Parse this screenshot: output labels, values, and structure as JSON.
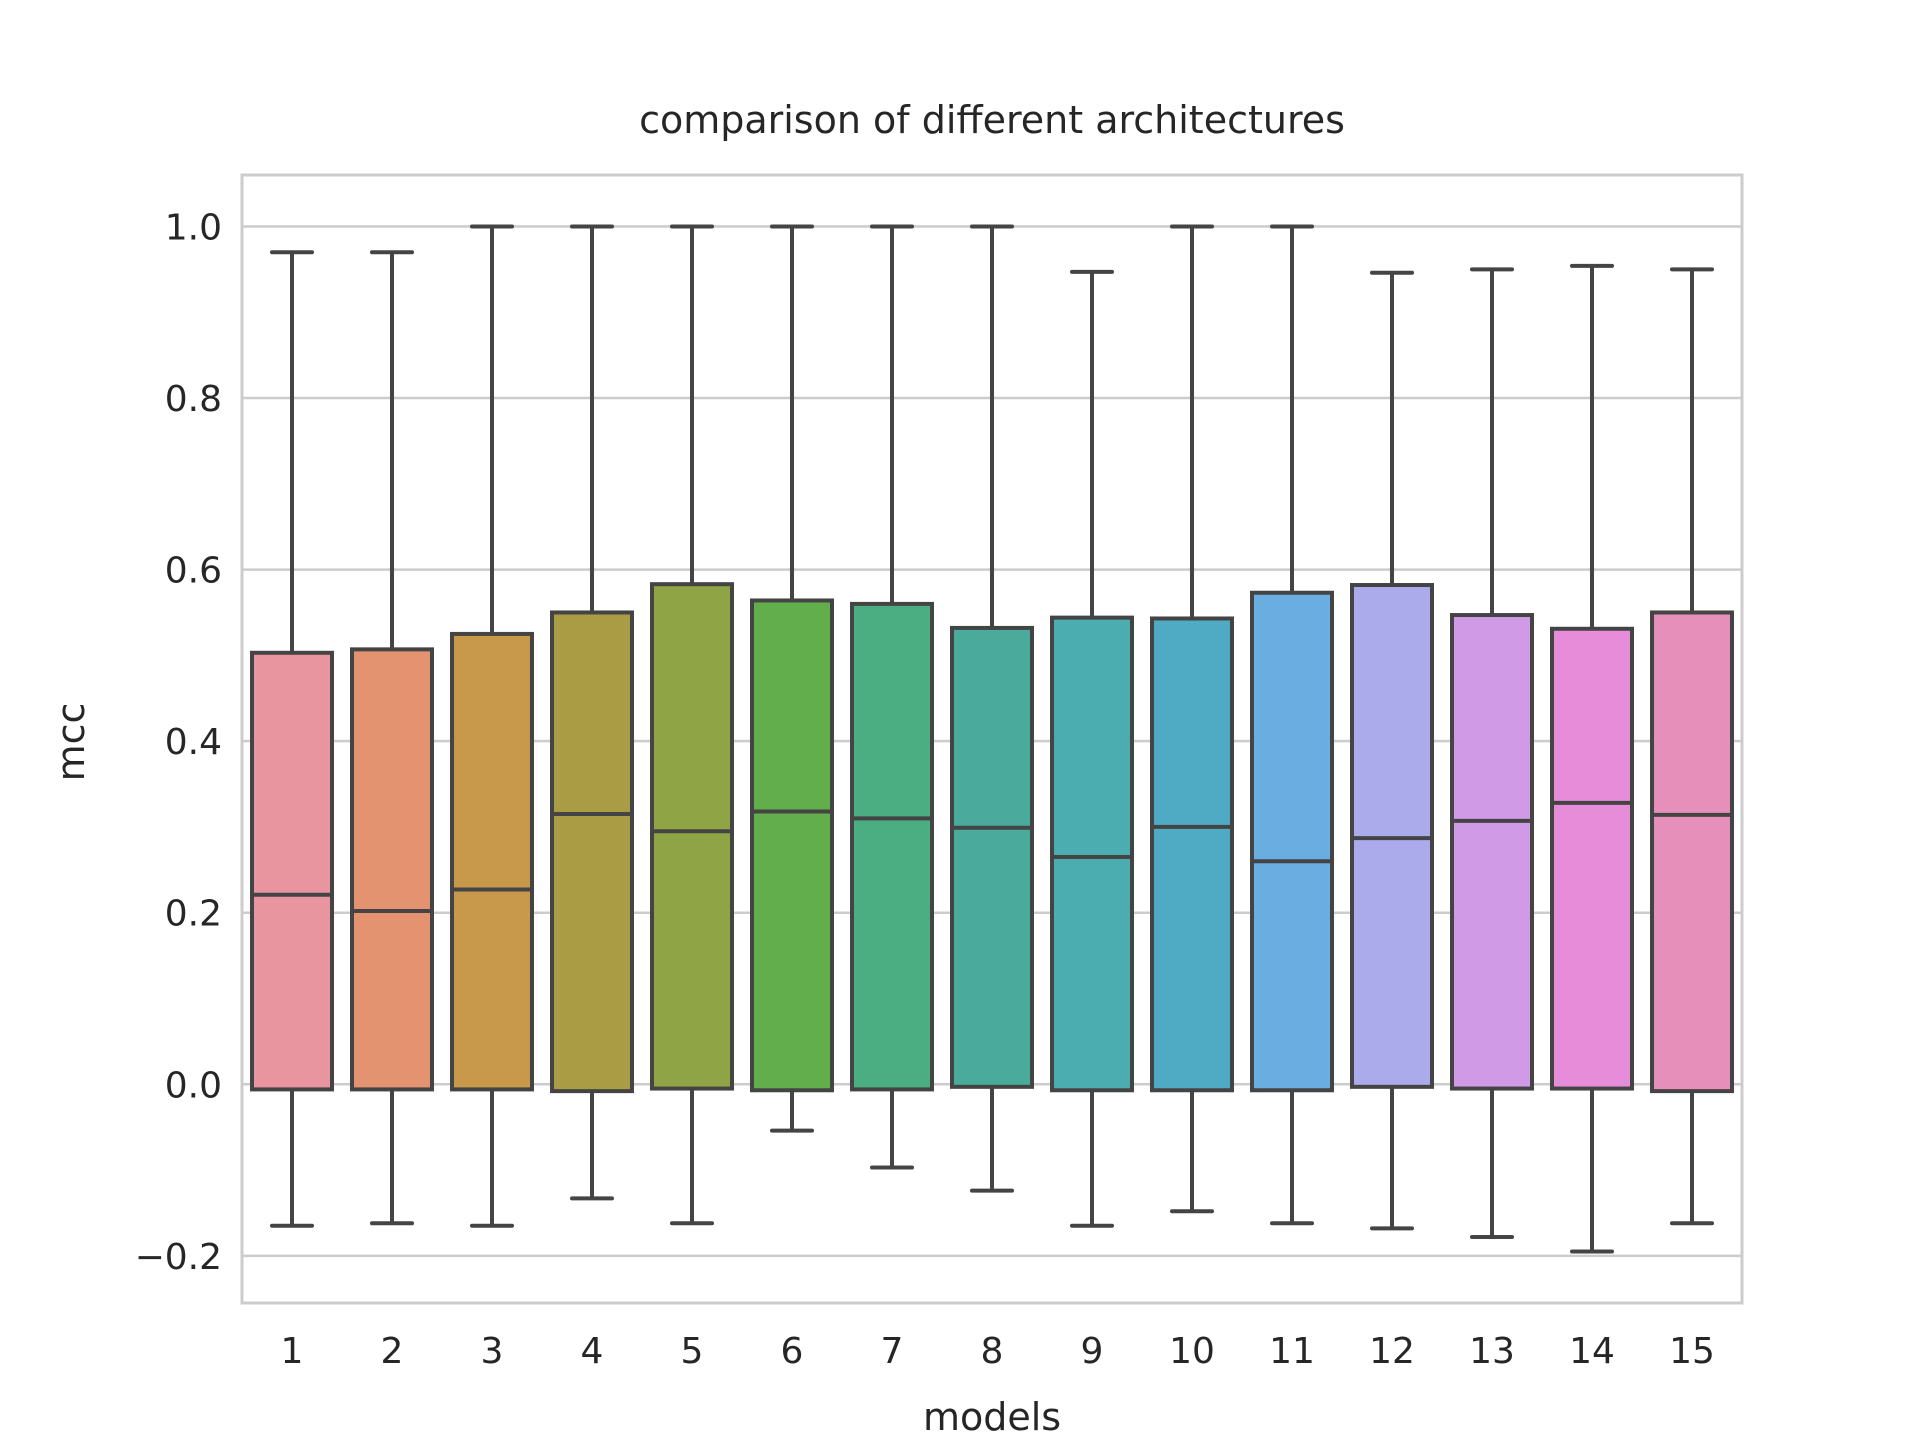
{
  "chart_data": {
    "type": "box",
    "title": "comparison of different architectures",
    "xlabel": "models",
    "ylabel": "mcc",
    "categories": [
      "1",
      "2",
      "3",
      "4",
      "5",
      "6",
      "7",
      "8",
      "9",
      "10",
      "11",
      "12",
      "13",
      "14",
      "15"
    ],
    "ylim": [
      -0.255,
      1.06
    ],
    "yticks": [
      -0.2,
      0.0,
      0.2,
      0.4,
      0.6,
      0.8,
      1.0
    ],
    "ytick_labels": [
      "−0.2",
      "0.0",
      "0.2",
      "0.4",
      "0.6",
      "0.8",
      "1.0"
    ],
    "grid": true,
    "boxes": [
      {
        "category": "1",
        "whisker_low": -0.165,
        "q1": -0.006,
        "median": 0.221,
        "q3": 0.503,
        "whisker_high": 0.97,
        "color": "#e8959f"
      },
      {
        "category": "2",
        "whisker_low": -0.162,
        "q1": -0.006,
        "median": 0.202,
        "q3": 0.507,
        "whisker_high": 0.97,
        "color": "#e39370"
      },
      {
        "category": "3",
        "whisker_low": -0.165,
        "q1": -0.006,
        "median": 0.227,
        "q3": 0.525,
        "whisker_high": 1.0,
        "color": "#c8994b"
      },
      {
        "category": "4",
        "whisker_low": -0.133,
        "q1": -0.008,
        "median": 0.315,
        "q3": 0.55,
        "whisker_high": 1.0,
        "color": "#a99c45"
      },
      {
        "category": "5",
        "whisker_low": -0.162,
        "q1": -0.005,
        "median": 0.295,
        "q3": 0.583,
        "whisker_high": 1.0,
        "color": "#8fa445"
      },
      {
        "category": "6",
        "whisker_low": -0.054,
        "q1": -0.007,
        "median": 0.318,
        "q3": 0.564,
        "whisker_high": 1.0,
        "color": "#62ae4c"
      },
      {
        "category": "7",
        "whisker_low": -0.097,
        "q1": -0.006,
        "median": 0.31,
        "q3": 0.56,
        "whisker_high": 1.0,
        "color": "#4bae83"
      },
      {
        "category": "8",
        "whisker_low": -0.124,
        "q1": -0.003,
        "median": 0.299,
        "q3": 0.532,
        "whisker_high": 1.0,
        "color": "#4aab9c"
      },
      {
        "category": "9",
        "whisker_low": -0.165,
        "q1": -0.007,
        "median": 0.265,
        "q3": 0.544,
        "whisker_high": 0.947,
        "color": "#4badb0"
      },
      {
        "category": "10",
        "whisker_low": -0.148,
        "q1": -0.007,
        "median": 0.3,
        "q3": 0.543,
        "whisker_high": 1.0,
        "color": "#4fabc4"
      },
      {
        "category": "11",
        "whisker_low": -0.162,
        "q1": -0.007,
        "median": 0.26,
        "q3": 0.573,
        "whisker_high": 1.0,
        "color": "#6aade0"
      },
      {
        "category": "12",
        "whisker_low": -0.168,
        "q1": -0.003,
        "median": 0.287,
        "q3": 0.582,
        "whisker_high": 0.946,
        "color": "#abaaeb"
      },
      {
        "category": "13",
        "whisker_low": -0.178,
        "q1": -0.005,
        "median": 0.307,
        "q3": 0.547,
        "whisker_high": 0.95,
        "color": "#d09ae6"
      },
      {
        "category": "14",
        "whisker_low": -0.195,
        "q1": -0.005,
        "median": 0.328,
        "q3": 0.531,
        "whisker_high": 0.954,
        "color": "#e78cd9"
      },
      {
        "category": "15",
        "whisker_low": -0.162,
        "q1": -0.008,
        "median": 0.314,
        "q3": 0.55,
        "whisker_high": 0.95,
        "color": "#e68fbb"
      }
    ],
    "colors": {
      "box_edge": "#444444",
      "grid": "#cccccc",
      "frame": "#cccccc",
      "text": "#262626"
    }
  }
}
